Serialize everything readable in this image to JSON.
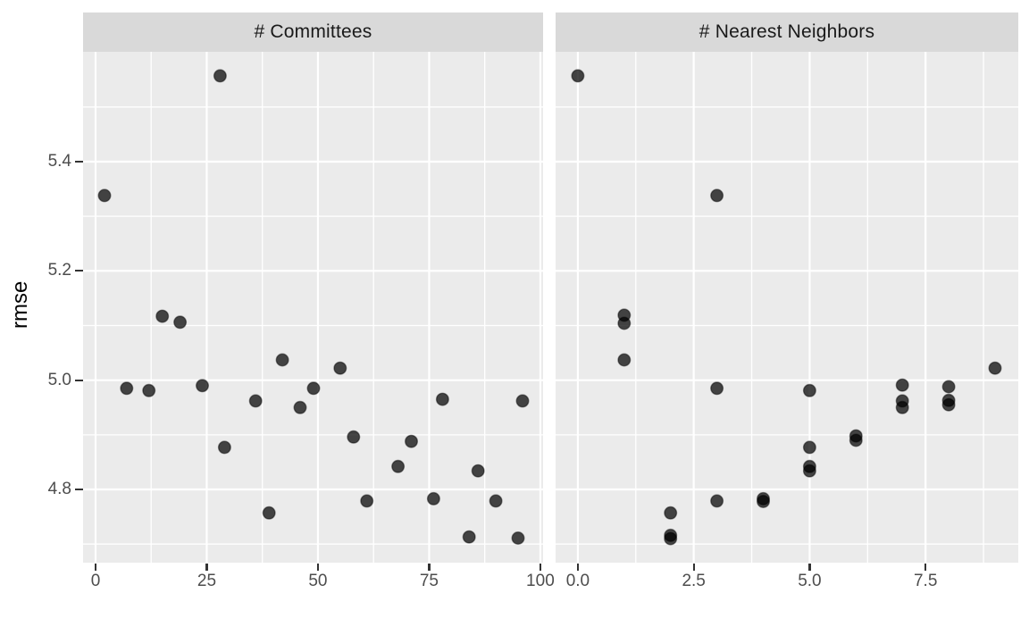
{
  "figure": {
    "background_color": "#ffffff",
    "panel_background_color": "#ebebeb",
    "strip_background_color": "#d9d9d9",
    "grid_color": "#ffffff",
    "point_color": "#000000",
    "point_opacity": 0.72,
    "axis_text_color": "#4d4d4d",
    "strip_text_color": "#1a1a1a",
    "tick_mark_color": "#333333"
  },
  "chart_data": {
    "type": "scatter",
    "title": "",
    "xlabel": "",
    "ylabel": "rmse",
    "grid": "on",
    "legend": "none",
    "y_domain": [
      4.666,
      5.601
    ],
    "y_ticks": [
      5.4,
      5.2,
      5.0,
      4.8
    ],
    "y_tick_labels": [
      "5.4",
      "5.2",
      "5.0",
      "4.8"
    ],
    "y_minor": [
      5.5,
      5.3,
      5.1,
      4.9,
      4.7
    ],
    "panels": [
      {
        "title": "# Committees",
        "x_domain": [
          -2.81,
          100.62
        ],
        "x_ticks": [
          0,
          25,
          50,
          75,
          100
        ],
        "x_tick_labels": [
          "0",
          "25",
          "50",
          "75",
          "100"
        ],
        "x_minor": [
          12.5,
          37.5,
          62.5,
          87.5
        ],
        "points": [
          [
            2,
            5.338
          ],
          [
            7,
            4.985
          ],
          [
            12,
            4.981
          ],
          [
            15,
            5.117
          ],
          [
            19,
            5.106
          ],
          [
            24,
            4.99
          ],
          [
            28,
            5.557
          ],
          [
            29,
            4.877
          ],
          [
            36,
            4.962
          ],
          [
            39,
            4.757
          ],
          [
            42,
            5.037
          ],
          [
            46,
            4.95
          ],
          [
            49,
            4.985
          ],
          [
            55,
            5.022
          ],
          [
            58,
            4.896
          ],
          [
            61,
            4.779
          ],
          [
            68,
            4.842
          ],
          [
            71,
            4.888
          ],
          [
            76,
            4.783
          ],
          [
            78,
            4.965
          ],
          [
            84,
            4.713
          ],
          [
            86,
            4.834
          ],
          [
            90,
            4.779
          ],
          [
            95,
            4.711
          ],
          [
            96,
            4.962
          ]
        ]
      },
      {
        "title": "# Nearest Neighbors",
        "x_domain": [
          -0.48,
          9.5
        ],
        "x_ticks": [
          0,
          2.5,
          5,
          7.5
        ],
        "x_tick_labels": [
          "0.0",
          "2.5",
          "5.0",
          "7.5"
        ],
        "x_minor": [
          1.25,
          3.75,
          6.25,
          8.75
        ],
        "points": [
          [
            0,
            5.557
          ],
          [
            1,
            5.119
          ],
          [
            1,
            5.104
          ],
          [
            1,
            5.037
          ],
          [
            2,
            4.757
          ],
          [
            2,
            4.716
          ],
          [
            2,
            4.71
          ],
          [
            3,
            5.338
          ],
          [
            3,
            4.985
          ],
          [
            3,
            4.779
          ],
          [
            4,
            4.783
          ],
          [
            4,
            4.778
          ],
          [
            5,
            4.981
          ],
          [
            5,
            4.877
          ],
          [
            5,
            4.842
          ],
          [
            5,
            4.834
          ],
          [
            6,
            4.898
          ],
          [
            6,
            4.89
          ],
          [
            7,
            4.991
          ],
          [
            7,
            4.962
          ],
          [
            7,
            4.95
          ],
          [
            8,
            4.988
          ],
          [
            8,
            4.963
          ],
          [
            8,
            4.955
          ],
          [
            9,
            5.022
          ]
        ]
      }
    ]
  }
}
